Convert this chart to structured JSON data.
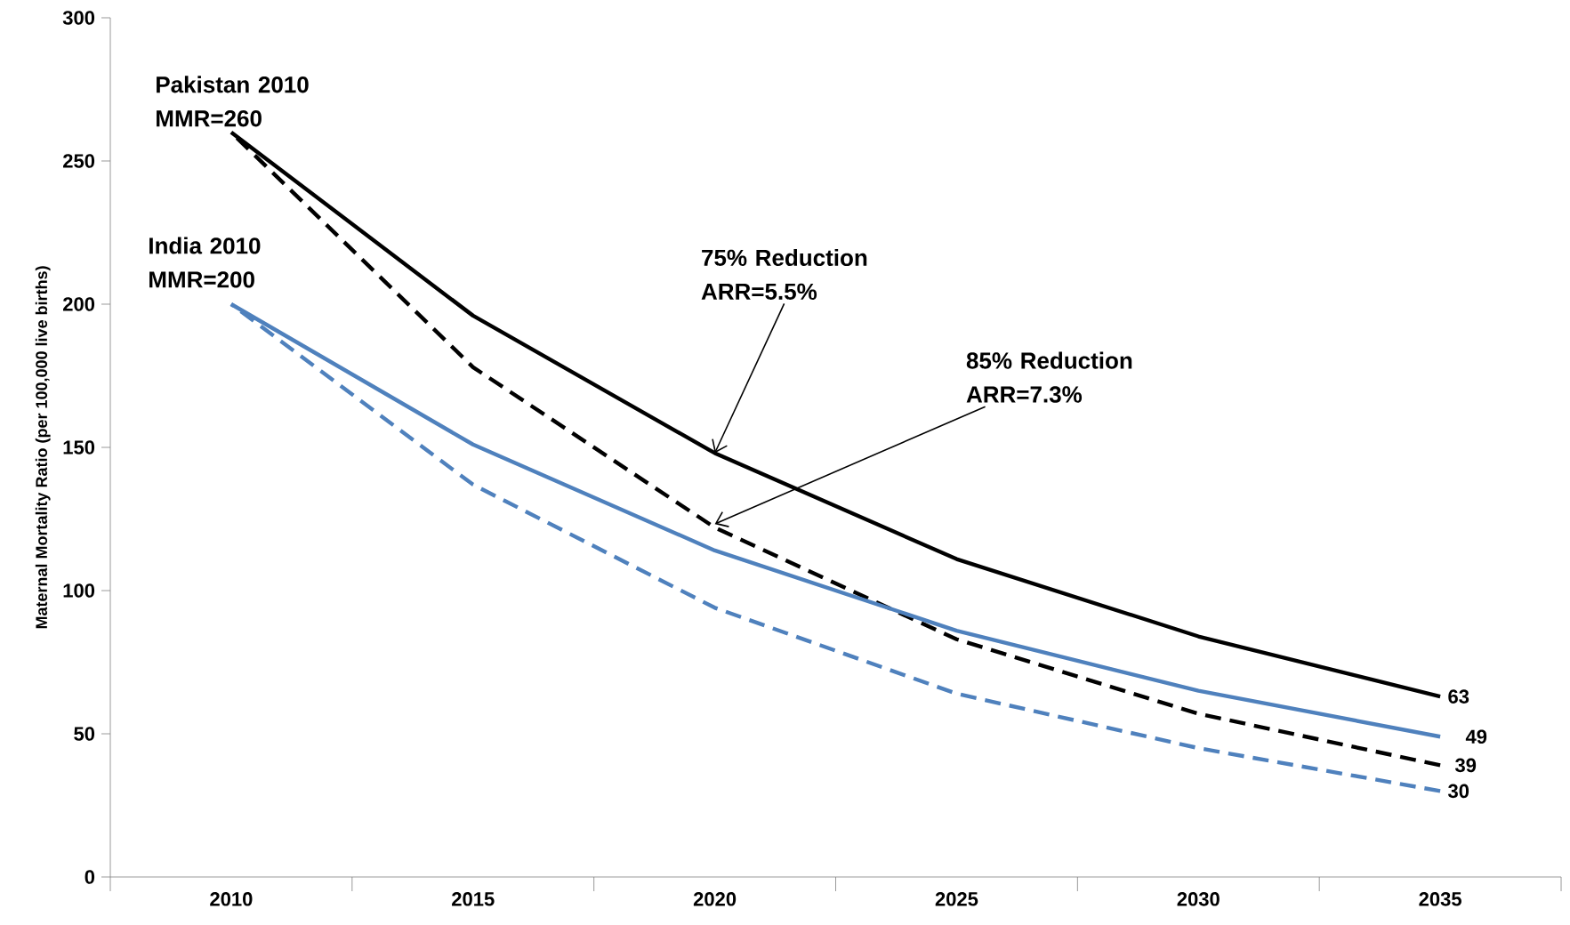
{
  "chart_data": {
    "type": "line",
    "ylabel": "Maternal Mortality Ratio (per 100,000 live births)",
    "categories": [
      "2010",
      "2015",
      "2020",
      "2025",
      "2030",
      "2035"
    ],
    "ylim": [
      0,
      300
    ],
    "yticks": [
      0,
      50,
      100,
      150,
      200,
      250,
      300
    ],
    "grid": false,
    "marker": "none",
    "series": [
      {
        "color": "#000000",
        "line_style": "solid",
        "values": [
          260,
          196,
          148,
          111,
          84,
          63
        ],
        "value_labels": [
          null,
          null,
          null,
          null,
          null,
          "63"
        ]
      },
      {
        "color": "#000000",
        "line_style": "dashed",
        "values": [
          260,
          178,
          122,
          83,
          57,
          39
        ],
        "value_labels": [
          null,
          null,
          null,
          null,
          null,
          "39"
        ]
      },
      {
        "color": "#4f81bd",
        "line_style": "solid",
        "values": [
          200,
          151,
          114,
          86,
          65,
          49
        ],
        "value_labels": [
          null,
          null,
          null,
          null,
          null,
          "49"
        ]
      },
      {
        "color": "#4f81bd",
        "line_style": "dashed",
        "values": [
          200,
          137,
          94,
          64,
          45,
          30
        ],
        "value_labels": [
          null,
          null,
          null,
          null,
          null,
          "30"
        ]
      }
    ],
    "annotations": [
      {
        "text": "Pakistan 2010 MMR=260",
        "x": "2010",
        "y": 260
      },
      {
        "text": "India 2010 MMR=200",
        "x": "2010",
        "y": 200
      },
      {
        "text": "75% Reduction ARR=5.5%",
        "x": "2020",
        "y": 148
      },
      {
        "text": "85% Reduction ARR=7.3%",
        "x": "2020",
        "y": 122
      }
    ]
  }
}
